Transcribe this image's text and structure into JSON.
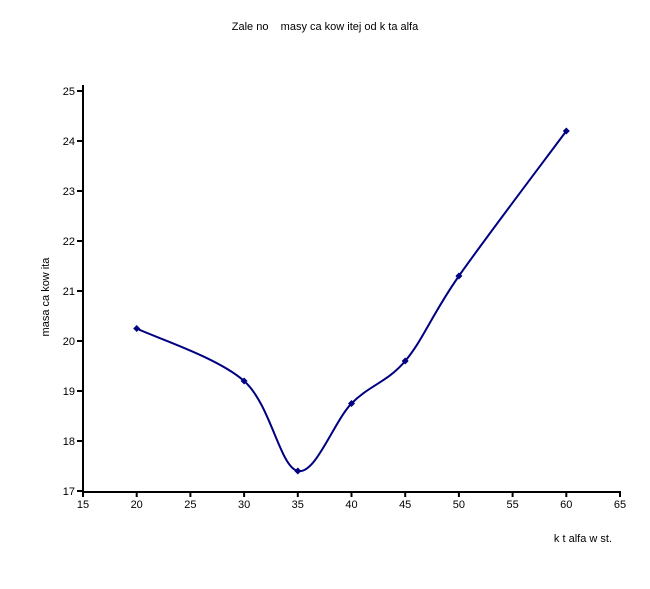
{
  "chart_data": {
    "type": "line",
    "title": "Zale no    masy ca kow itej od k ta alfa",
    "xlabel": "k t alfa w st.",
    "ylabel": "masa ca kow ita",
    "x": [
      20,
      30,
      35,
      40,
      45,
      50,
      60
    ],
    "y": [
      20.25,
      19.2,
      17.4,
      18.75,
      19.6,
      21.3,
      24.2
    ],
    "xlim": [
      15,
      65
    ],
    "ylim": [
      17,
      25
    ],
    "x_ticks": [
      15,
      20,
      25,
      30,
      35,
      40,
      45,
      50,
      55,
      60,
      65
    ],
    "y_ticks": [
      17,
      18,
      19,
      20,
      21,
      22,
      23,
      24,
      25
    ],
    "grid": false,
    "legend_position": "none",
    "smooth": true,
    "marker": "diamond",
    "line_color": "#000080",
    "marker_color": "#000080",
    "axis_color": "#000000",
    "background_color": "#ffffff"
  }
}
